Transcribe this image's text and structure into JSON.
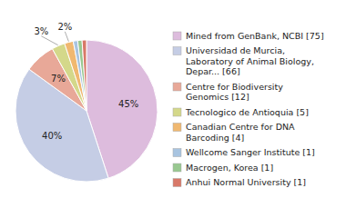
{
  "chart_data": {
    "type": "pie",
    "categories": [
      "Mined from GenBank, NCBI [75]",
      "Universidad de Murcia,\nLaboratory of Animal Biology,\nDepar... [66]",
      "Centre for Biodiversity\nGenomics [12]",
      "Tecnologico de Antioquia [5]",
      "Canadian Centre for DNA\nBarcoding [4]",
      "Wellcome Sanger Institute [1]",
      "Macrogen, Korea [1]",
      "Anhui Normal University [1]"
    ],
    "values": [
      45,
      40,
      7,
      3,
      2,
      1,
      1,
      1
    ],
    "value_labels": [
      "45%",
      "40%",
      "7%",
      "3%",
      "2%",
      null,
      null,
      null
    ],
    "colors": [
      "#ddbcdd",
      "#c5cde5",
      "#e8a898",
      "#d4d88a",
      "#f0b870",
      "#a8c4e0",
      "#98c890",
      "#d87868"
    ],
    "data_labels": true,
    "legend": "right"
  }
}
